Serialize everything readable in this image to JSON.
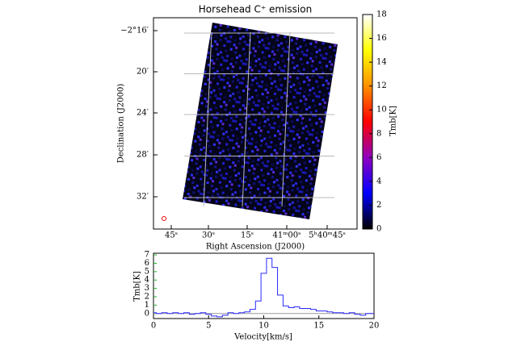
{
  "chart_data": [
    {
      "type": "image",
      "title": "Horsehead C⁺ emission",
      "x_label": "Right Ascension (J2000)",
      "y_label": "Declination (J2000)",
      "xticks": [
        "45ˢ",
        "30ˢ",
        "15ˢ",
        "41ᵐ00ˢ",
        "5ʰ40ᵐ45ˢ"
      ],
      "yticks": [
        "−2°16′",
        "20′",
        "24′",
        "28′",
        "32′"
      ],
      "colorbar": {
        "label": "Tmb[K]",
        "clim": [
          0,
          18
        ],
        "ticks": [
          0,
          2,
          4,
          6,
          8,
          10,
          12,
          14,
          16,
          18
        ],
        "cmap": [
          "#000000",
          "#0000ff",
          "#9000c0",
          "#ff0000",
          "#ff9000",
          "#ffff00",
          "#ffffff"
        ]
      },
      "grid": true
    },
    {
      "type": "line",
      "x_label": "Velocity[km/s]",
      "y_label": "Tmb[K]",
      "xlim": [
        0,
        20
      ],
      "xticks": [
        0,
        5,
        10,
        15,
        20
      ],
      "ylim": [
        -0.6,
        7.2
      ],
      "yticks": [
        0,
        1,
        2,
        3,
        4,
        5,
        6,
        7
      ],
      "x": [
        0,
        0.5,
        1,
        1.5,
        2,
        2.5,
        3,
        3.5,
        4,
        4.5,
        5,
        5.5,
        6,
        6.5,
        7,
        7.5,
        8,
        8.5,
        9,
        9.5,
        10,
        10.5,
        11,
        11.5,
        12,
        12.5,
        13,
        13.5,
        14,
        14.5,
        15,
        15.5,
        16,
        16.5,
        17,
        17.5,
        18,
        18.5,
        19,
        19.5,
        20
      ],
      "series": [
        {
          "color": "#2a2aff",
          "values": [
            0.1,
            0.0,
            0.1,
            0.0,
            0.1,
            0.0,
            0.1,
            -0.1,
            0.0,
            0.1,
            -0.1,
            -0.3,
            -0.4,
            -0.2,
            0.1,
            0.0,
            0.1,
            0.2,
            0.5,
            1.5,
            4.8,
            6.6,
            5.5,
            2.2,
            0.9,
            0.7,
            0.8,
            0.6,
            0.6,
            0.5,
            0.3,
            0.3,
            0.2,
            0.1,
            0.1,
            0.0,
            0.1,
            -0.1,
            -0.2,
            0.0,
            0.0
          ]
        }
      ]
    }
  ]
}
